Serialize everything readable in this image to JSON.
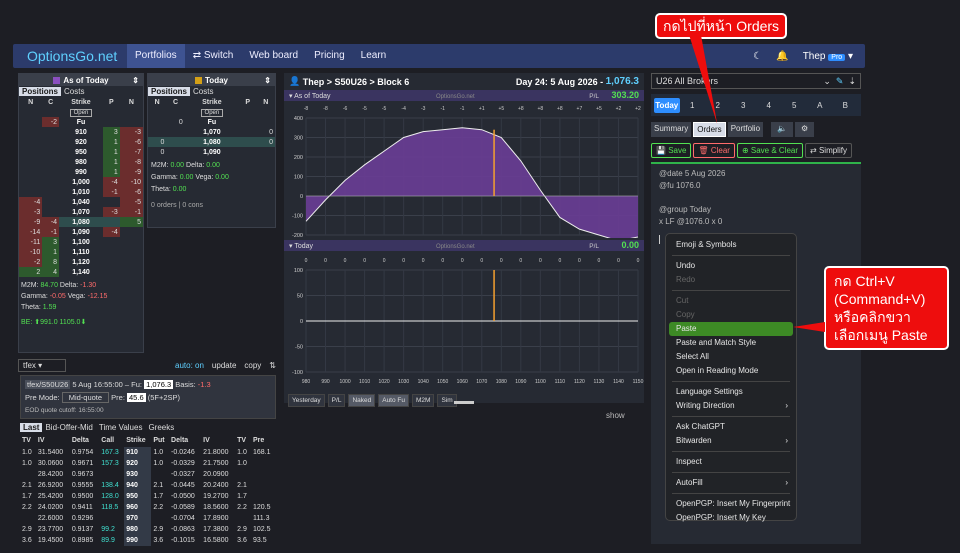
{
  "nav": {
    "brand": "OptionsGo.net",
    "items": [
      "Portfolios",
      "⇄ Switch",
      "Web board",
      "Pricing",
      "Learn"
    ],
    "user": "Thep",
    "pro": "Pro"
  },
  "left": {
    "title": "As of Today",
    "tabs": [
      "Positions",
      "Costs"
    ],
    "headers": [
      "N",
      "C",
      "Strike",
      "P",
      "N"
    ],
    "open": "Open",
    "rows": [
      [
        "",
        "-2",
        "Fu",
        "",
        ""
      ],
      [
        "",
        "",
        "910",
        "3",
        "-3"
      ],
      [
        "",
        "",
        "920",
        "1",
        "-6"
      ],
      [
        "",
        "",
        "950",
        "1",
        "-7"
      ],
      [
        "",
        "",
        "980",
        "1",
        "-8"
      ],
      [
        "",
        "",
        "990",
        "1",
        "-9"
      ],
      [
        "",
        "",
        "1,000",
        "-4",
        "-10"
      ],
      [
        "",
        "",
        "1,010",
        "-1",
        "-6"
      ],
      [
        "-4",
        "",
        "1,040",
        "",
        "-5"
      ],
      [
        "-3",
        "",
        "1,070",
        "-3",
        "-1"
      ],
      [
        "-9",
        "-4",
        "1,080",
        "",
        "5"
      ],
      [
        "-14",
        "-1",
        "1,090",
        "-4",
        ""
      ],
      [
        "-11",
        "3",
        "1,100",
        "",
        ""
      ],
      [
        "-10",
        "1",
        "1,110",
        "",
        ""
      ],
      [
        "-2",
        "8",
        "1,120",
        "",
        ""
      ],
      [
        "2",
        "4",
        "1,140",
        "",
        ""
      ]
    ],
    "m2m": "84.70",
    "delta": "-1.30",
    "gamma": "-0.05",
    "vega": "-12.15",
    "theta": "1.59",
    "be": "BE: ⬆991.0 1105.0⬇",
    "sel": "tfex",
    "auto": "auto: on",
    "update": "update",
    "copy": "copy"
  },
  "mid": {
    "title": "Today",
    "tabs": [
      "Positions",
      "Costs"
    ],
    "headers": [
      "N",
      "C",
      "Strike",
      "P",
      "N"
    ],
    "open": "Open",
    "rows": [
      [
        "",
        "0",
        "Fu",
        "",
        ""
      ],
      [
        "",
        "",
        "1,070",
        "",
        "0"
      ],
      [
        "0",
        "",
        "1,080",
        "",
        "0"
      ],
      [
        "0",
        "",
        "1,090",
        "",
        ""
      ]
    ],
    "m2m": "0.00",
    "delta": "0.00",
    "gamma": "0.00",
    "vega": "0.00",
    "theta": "0.00",
    "orders": "0 orders | 0 cons"
  },
  "chart": {
    "crumb": "Thep > S50U26 > Block 6",
    "day": "Day 24: 5 Aug 2026",
    "price": "1,076.3",
    "asof": "As of Today",
    "wm": "OptionsGo.net",
    "pl": "P/L",
    "plv": "303.20",
    "today": "Today",
    "pl2": "0.00",
    "btns": [
      "Yesterday",
      "P/L",
      "Naked",
      "Auto Fu",
      "M2M",
      "Sim"
    ],
    "show": "show",
    "xticks": [
      "980",
      "990",
      "1000",
      "1010",
      "1020",
      "1030",
      "1040",
      "1050",
      "1060",
      "1070",
      "1080",
      "1090",
      "1100",
      "1110",
      "1120",
      "1130",
      "1140",
      "1150"
    ],
    "yticks1": [
      "400",
      "300",
      "200",
      "100",
      "0",
      "-100",
      "-200"
    ],
    "yticks2": [
      "100",
      "50",
      "0",
      "-50",
      "-100"
    ],
    "topticks": [
      "-8",
      "-8",
      "-6",
      "-5",
      "-5",
      "-4",
      "-3",
      "-1",
      "-1",
      "+1",
      "+5",
      "+8",
      "+8",
      "+8",
      "+7",
      "+5",
      "+2",
      "+2"
    ],
    "chart_data": {
      "type": "area",
      "x": [
        980,
        990,
        1000,
        1010,
        1020,
        1030,
        1040,
        1050,
        1060,
        1070,
        1080,
        1090,
        1100,
        1110,
        1120,
        1130,
        1140,
        1150
      ],
      "values": [
        -130,
        -20,
        80,
        160,
        230,
        300,
        330,
        340,
        350,
        340,
        300,
        180,
        30,
        -110,
        -170,
        -200,
        -230,
        -210
      ],
      "ylim": [
        -250,
        450
      ]
    }
  },
  "quote": {
    "sym": "tfex/S50U26",
    "time": "5 Aug 16:55:00 – Fu:",
    "fu": "1,076.3",
    "basis": "Basis:",
    "basisv": "-1.3",
    "premode": "Pre Mode:",
    "mode": "Mid-quote",
    "pre": "Pre:",
    "prev": "45.6",
    "sp": "(5F+2SP)",
    "eod": "EOD quote cutoff: 16:55:00"
  },
  "chain": {
    "tabs": [
      "Last",
      "Bid-Offer-Mid",
      "Time Values",
      "Greeks"
    ],
    "headers": [
      "TV",
      "IV",
      "Delta",
      "Call",
      "Strike",
      "Put",
      "Delta",
      "IV",
      "TV",
      "Pre"
    ],
    "rows": [
      [
        "1.0",
        "31.5400",
        "0.9754",
        "167.3",
        "910",
        "1.0",
        "-0.0246",
        "21.8000",
        "1.0",
        "168.1"
      ],
      [
        "1.0",
        "30.0600",
        "0.9671",
        "157.3",
        "920",
        "1.0",
        "-0.0329",
        "21.7500",
        "1.0",
        ""
      ],
      [
        "",
        "28.4200",
        "0.9673",
        "",
        "930",
        "",
        "-0.0327",
        "20.0900",
        "",
        ""
      ],
      [
        "2.1",
        "26.9200",
        "0.9555",
        "138.4",
        "940",
        "2.1",
        "-0.0445",
        "20.2400",
        "2.1",
        ""
      ],
      [
        "1.7",
        "25.4200",
        "0.9500",
        "128.0",
        "950",
        "1.7",
        "-0.0500",
        "19.2700",
        "1.7",
        ""
      ],
      [
        "2.2",
        "24.0200",
        "0.9411",
        "118.5",
        "960",
        "2.2",
        "-0.0589",
        "18.5600",
        "2.2",
        "120.5"
      ],
      [
        "",
        "22.6000",
        "0.9296",
        "",
        "970",
        "",
        "-0.0704",
        "17.8900",
        "",
        "111.3"
      ],
      [
        "2.9",
        "23.7700",
        "0.9137",
        "99.2",
        "980",
        "2.9",
        "-0.0863",
        "17.3800",
        "2.9",
        "102.5"
      ],
      [
        "3.6",
        "19.4500",
        "0.8985",
        "89.9",
        "990",
        "3.6",
        "-0.1015",
        "16.5800",
        "3.6",
        "93.5"
      ]
    ]
  },
  "right": {
    "broker": "U26 All Brokers",
    "days": [
      "Today",
      "1",
      "2",
      "3",
      "4",
      "5",
      "A",
      "B"
    ],
    "tabs": [
      "Summary",
      "Orders",
      "Portfolio"
    ],
    "save": "Save",
    "clear": "Clear",
    "saveclear": "Save & Clear",
    "simplify": "Simplify",
    "lines": [
      "@date 5 Aug 2026",
      "@fu 1076.0",
      "",
      "@group Today",
      "x LF @1076.0 x 0"
    ]
  },
  "menu": [
    "Emoji & Symbols",
    "Undo",
    "Redo",
    "Cut",
    "Copy",
    "Paste",
    "Paste and Match Style",
    "Select All",
    "Open in Reading Mode",
    "Language Settings",
    "Writing Direction",
    "Ask ChatGPT",
    "Bitwarden",
    "Inspect",
    "AutoFill",
    "OpenPGP: Insert My Fingerprint",
    "OpenPGP: Insert My Key"
  ],
  "ann": {
    "top": "กดไปที่หน้า Orders",
    "right": "กด Ctrl+V (Command+V) หรือคลิกขวา เลือกเมนู Paste"
  },
  "colors": {
    "accent": "#2e8eff",
    "purple": "#6a3d96",
    "green": "#3d8a25",
    "red": "#ee0d0d"
  }
}
